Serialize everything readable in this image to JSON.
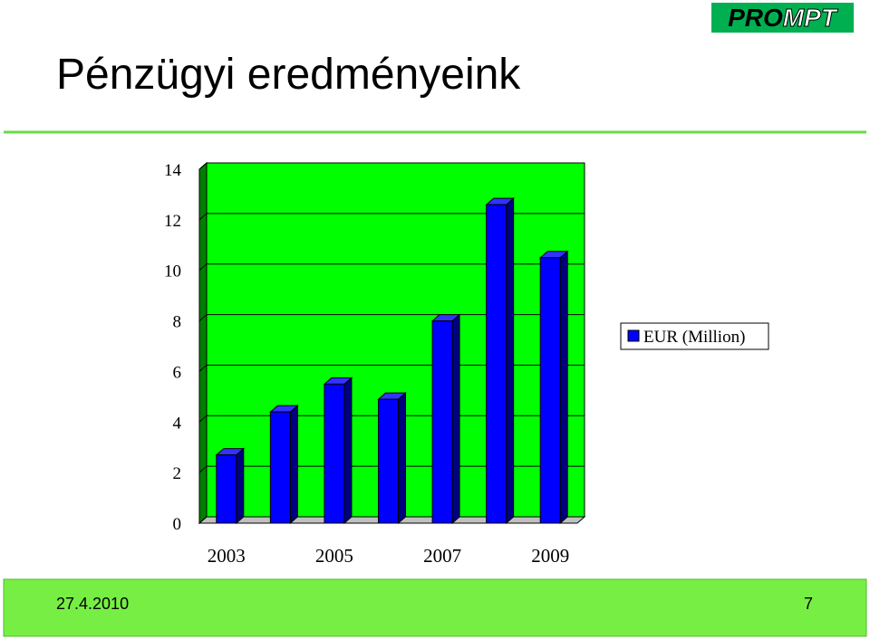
{
  "slide": {
    "title": "Pénzügyi  eredményeink",
    "logo": {
      "parts": [
        "PRO",
        "MPT"
      ]
    },
    "date": "27.4.2010",
    "page": 7
  },
  "chart_data": {
    "type": "bar3d",
    "categories": [
      "2003",
      null,
      "2005",
      null,
      "2007",
      null,
      "2009"
    ],
    "series": [
      {
        "name": "EUR (Million)",
        "color": "#0000ff",
        "values": [
          2.7,
          4.4,
          5.5,
          4.9,
          8.0,
          12.6,
          10.5
        ]
      }
    ],
    "ylim": [
      0,
      14
    ],
    "yticks": [
      0,
      2,
      4,
      6,
      8,
      10,
      12,
      14
    ],
    "grid": true,
    "legend": "right",
    "background": "#00ff00"
  }
}
